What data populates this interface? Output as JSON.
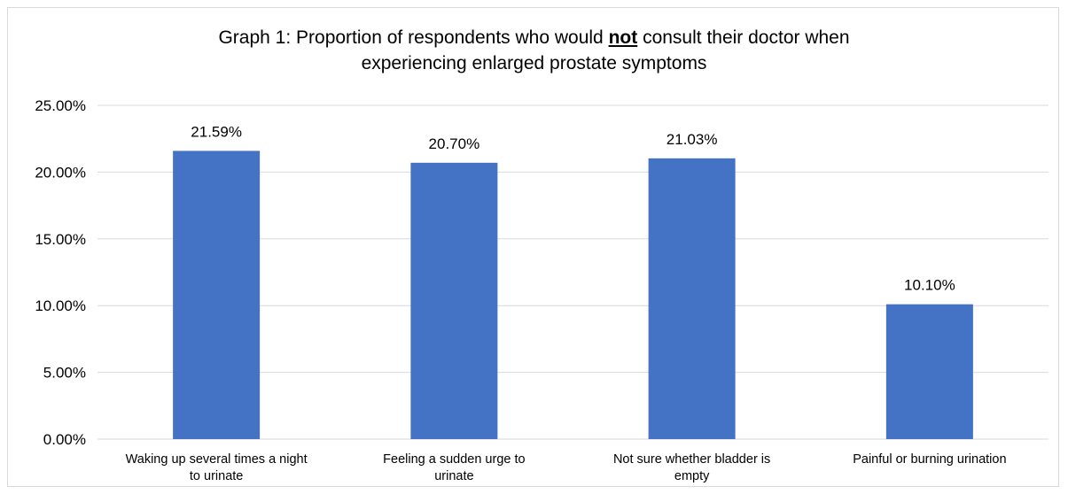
{
  "chart_data": {
    "type": "bar",
    "title_before": "Graph 1: Proportion of respondents who would ",
    "title_emphasis": "not",
    "title_after": " consult their doctor when",
    "title_line2": "experiencing enlarged prostate symptoms",
    "categories": [
      [
        "Waking up several times a night",
        "to urinate"
      ],
      [
        "Feeling a sudden urge to",
        "urinate"
      ],
      [
        "Not sure whether bladder is",
        "empty"
      ],
      [
        "Painful or burning urination"
      ]
    ],
    "values": [
      21.59,
      20.7,
      21.03,
      10.1
    ],
    "data_labels": [
      "21.59%",
      "20.70%",
      "21.03%",
      "10.10%"
    ],
    "y_ticks": [
      0,
      5,
      10,
      15,
      20,
      25
    ],
    "y_tick_labels": [
      "0.00%",
      "5.00%",
      "10.00%",
      "15.00%",
      "20.00%",
      "25.00%"
    ],
    "ylim": [
      0,
      25
    ],
    "xlabel": "",
    "ylabel": "",
    "grid": true,
    "legend": "none",
    "bar_color": "#4472c4",
    "grid_color": "#d9d9d9"
  }
}
